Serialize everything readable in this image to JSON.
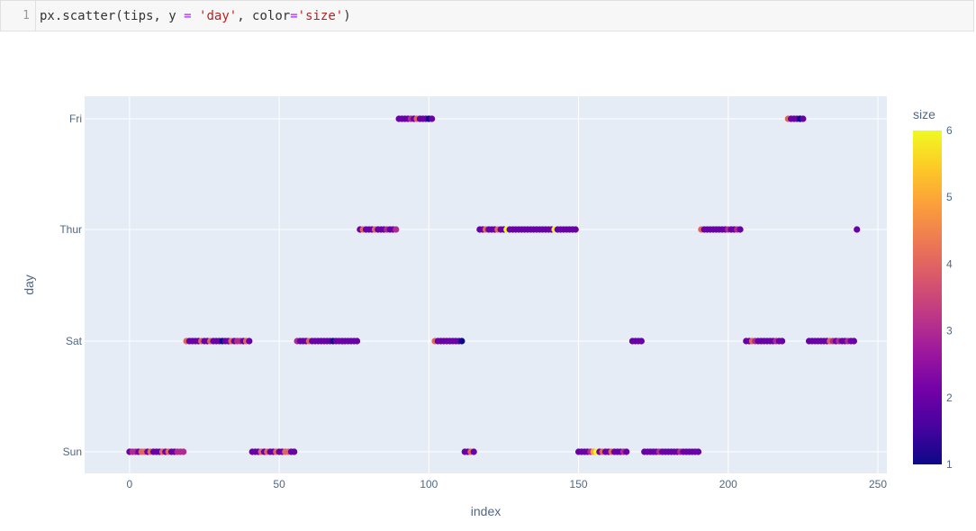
{
  "cell": {
    "line_number": "1",
    "code_parts": [
      {
        "text": "px.scatter(tips, y ",
        "cls": ""
      },
      {
        "text": "=",
        "cls": "tok-op"
      },
      {
        "text": " ",
        "cls": ""
      },
      {
        "text": "'day'",
        "cls": "tok-str"
      },
      {
        "text": ", color",
        "cls": ""
      },
      {
        "text": "=",
        "cls": "tok-op"
      },
      {
        "text": "'size'",
        "cls": "tok-str"
      },
      {
        "text": ")",
        "cls": ""
      }
    ]
  },
  "chart_data": {
    "type": "scatter",
    "xlabel": "index",
    "ylabel": "day",
    "xlim": [
      -15,
      253
    ],
    "x_ticks": [
      0,
      50,
      100,
      150,
      200,
      250
    ],
    "categories": [
      "Sun",
      "Sat",
      "Thur",
      "Fri"
    ],
    "colorbar": {
      "title": "size",
      "min": 1,
      "max": 6,
      "ticks": [
        1,
        2,
        3,
        4,
        5,
        6
      ]
    },
    "colorscale": [
      "#0d0887",
      "#46039f",
      "#7201a8",
      "#9c179e",
      "#bd3786",
      "#d8576b",
      "#ed7953",
      "#fb9f3a",
      "#fdca26",
      "#f0f921"
    ],
    "grid": true,
    "legend": "right",
    "segments": [
      {
        "day": "Sun",
        "from": 0,
        "to": 18
      },
      {
        "day": "Sat",
        "from": 19,
        "to": 40
      },
      {
        "day": "Sun",
        "from": 41,
        "to": 55
      },
      {
        "day": "Sat",
        "from": 56,
        "to": 76
      },
      {
        "day": "Thur",
        "from": 77,
        "to": 89
      },
      {
        "day": "Fri",
        "from": 90,
        "to": 101
      },
      {
        "day": "Sat",
        "from": 102,
        "to": 111
      },
      {
        "day": "Sun",
        "from": 112,
        "to": 115
      },
      {
        "day": "Thur",
        "from": 117,
        "to": 149
      },
      {
        "day": "Sun",
        "from": 150,
        "to": 166
      },
      {
        "day": "Sat",
        "from": 168,
        "to": 171
      },
      {
        "day": "Sun",
        "from": 172,
        "to": 190
      },
      {
        "day": "Thur",
        "from": 191,
        "to": 204
      },
      {
        "day": "Sat",
        "from": 206,
        "to": 218
      },
      {
        "day": "Fri",
        "from": 220,
        "to": 225
      },
      {
        "day": "Sat",
        "from": 227,
        "to": 242
      },
      {
        "day": "Thur",
        "from": 243,
        "to": 243
      }
    ],
    "sizes": [
      2,
      3,
      3,
      2,
      4,
      4,
      2,
      4,
      2,
      2,
      2,
      4,
      2,
      4,
      2,
      2,
      3,
      3,
      3,
      4,
      2,
      2,
      2,
      2,
      4,
      2,
      2,
      4,
      2,
      2,
      2,
      1,
      2,
      2,
      4,
      2,
      3,
      3,
      2,
      4,
      2,
      2,
      2,
      2,
      4,
      2,
      4,
      2,
      2,
      4,
      2,
      2,
      4,
      4,
      2,
      2,
      3,
      2,
      2,
      2,
      4,
      2,
      2,
      2,
      2,
      2,
      2,
      2,
      1,
      2,
      2,
      2,
      2,
      2,
      2,
      2,
      2,
      2,
      4,
      2,
      2,
      2,
      4,
      2,
      2,
      2,
      3,
      2,
      2,
      3,
      2,
      2,
      2,
      2,
      3,
      2,
      4,
      2,
      2,
      2,
      1,
      2,
      4,
      2,
      2,
      2,
      2,
      2,
      2,
      2,
      2,
      1,
      2,
      2,
      4,
      2,
      3,
      2,
      2,
      4,
      2,
      2,
      2,
      4,
      2,
      2,
      6,
      2,
      2,
      2,
      2,
      2,
      2,
      2,
      2,
      2,
      2,
      2,
      2,
      2,
      2,
      2,
      6,
      2,
      2,
      2,
      2,
      2,
      2,
      2,
      2,
      2,
      2,
      2,
      3,
      5,
      6,
      2,
      4,
      2,
      2,
      4,
      2,
      2,
      2,
      3,
      2,
      2,
      2,
      2,
      2,
      2,
      2,
      2,
      2,
      2,
      2,
      3,
      2,
      2,
      2,
      2,
      2,
      2,
      3,
      2,
      2,
      2,
      2,
      2,
      2,
      4,
      2,
      2,
      2,
      2,
      2,
      2,
      2,
      2,
      3,
      2,
      2,
      3,
      2,
      2,
      2,
      2,
      4,
      3,
      2,
      2,
      2,
      2,
      2,
      2,
      3,
      2,
      2,
      2,
      4,
      2,
      2,
      2,
      1,
      2,
      1,
      2,
      2,
      2,
      2,
      2,
      2,
      2,
      4,
      3,
      2,
      3,
      2,
      2,
      3,
      2,
      2,
      2,
      2,
      2,
      2,
      4,
      2,
      2
    ]
  }
}
